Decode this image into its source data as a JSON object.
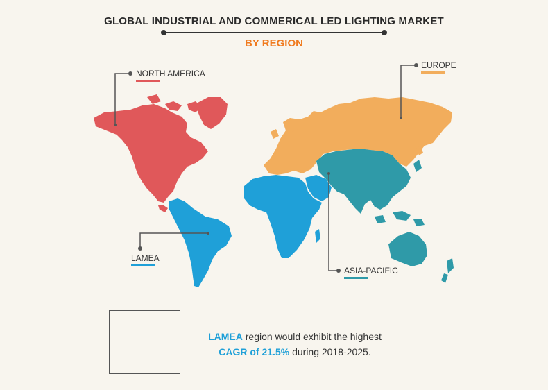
{
  "header": {
    "title": "GLOBAL INDUSTRIAL AND COMMERICAL LED LIGHTING MARKET",
    "subtitle": "BY REGION"
  },
  "regions": [
    {
      "id": "north-america",
      "label": "NORTH AMERICA",
      "color": "#e0585a"
    },
    {
      "id": "europe",
      "label": "EUROPE",
      "color": "#f2ad5c"
    },
    {
      "id": "lamea",
      "label": "LAMEA",
      "color": "#1fa0d8"
    },
    {
      "id": "asia-pacific",
      "label": "ASIA-PACIFIC",
      "color": "#2f9aa8"
    }
  ],
  "callout": {
    "region": "LAMEA",
    "line1_rest": "region would exhibit the highest",
    "highlight": "CAGR of 21.5%",
    "line2_rest": "during 2018-2025."
  },
  "colors": {
    "background": "#f8f5ee",
    "title": "#2b2b2b",
    "subtitle": "#f07a1e",
    "leader_line": "#555555"
  }
}
